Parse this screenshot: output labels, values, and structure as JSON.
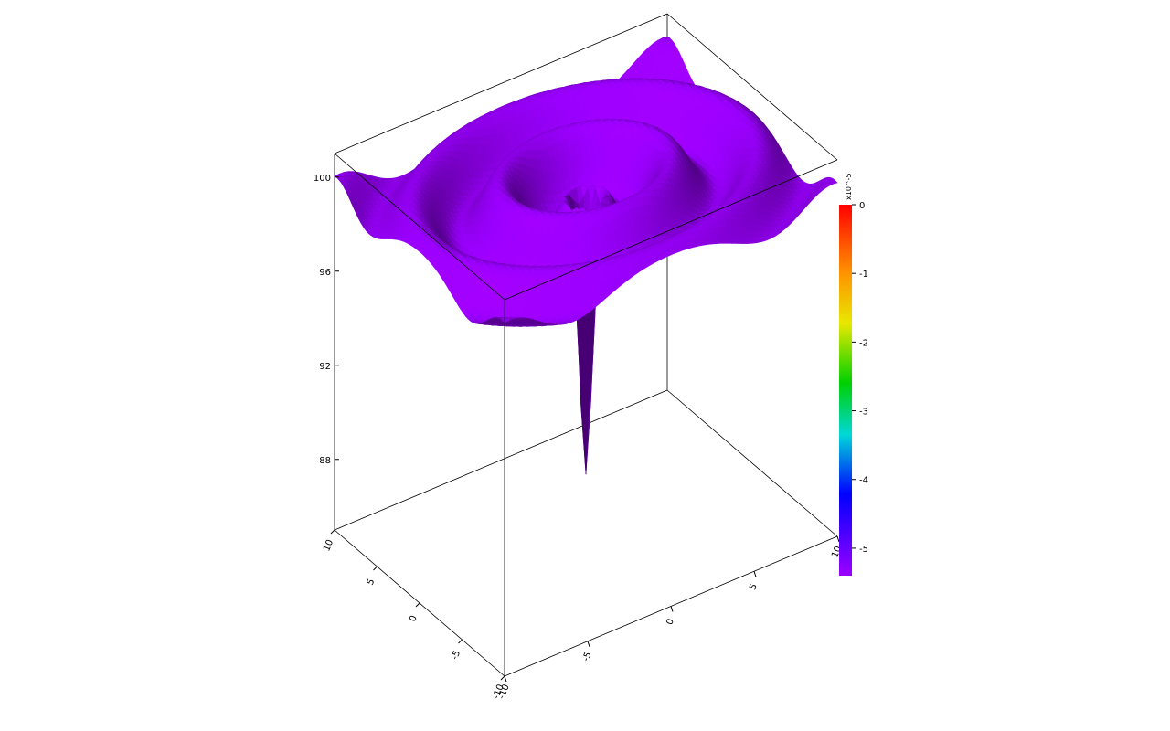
{
  "chart_data": {
    "type": "surface",
    "title": "",
    "xlabel": "",
    "ylabel": "",
    "zlabel": "",
    "x_range": [
      -10,
      10
    ],
    "y_range": [
      -10,
      10
    ],
    "z_range": [
      85,
      101
    ],
    "z_ticks": [
      {
        "value": 100,
        "label": "100"
      },
      {
        "value": 96,
        "label": "96"
      },
      {
        "value": 92,
        "label": "92"
      },
      {
        "value": 88,
        "label": "88"
      }
    ],
    "x_ticks": [
      {
        "value": -10,
        "label": "-10"
      },
      {
        "value": -5,
        "label": "-5"
      },
      {
        "value": 0,
        "label": "0"
      },
      {
        "value": 5,
        "label": "5"
      },
      {
        "value": 10,
        "label": "10"
      }
    ],
    "y_ticks": [
      {
        "value": -10,
        "label": "-10"
      },
      {
        "value": -5,
        "label": "-5"
      },
      {
        "value": 0,
        "label": "0"
      },
      {
        "value": 5,
        "label": "5"
      },
      {
        "value": 10,
        "label": "10"
      }
    ],
    "surface": {
      "description_shape": "radial ripple with sharp central spike downward",
      "base_level": 99.5,
      "ripple_amplitude": 1.5,
      "center_min": 86,
      "center_spike_radius": 0.4
    },
    "surface_color": "#9b00ff",
    "colorbar": {
      "title": "x10^-5",
      "range": [
        -5.4,
        0
      ],
      "ticks": [
        {
          "value": 0,
          "label": "0"
        },
        {
          "value": -1,
          "label": "-1"
        },
        {
          "value": -2,
          "label": "-2"
        },
        {
          "value": -3,
          "label": "-3"
        },
        {
          "value": -4,
          "label": "-4"
        },
        {
          "value": -5,
          "label": "-5"
        }
      ],
      "colors": [
        "#ff0000",
        "#ff8c00",
        "#ffff00",
        "#00ff00",
        "#00ffff",
        "#0000ff",
        "#9b00ff"
      ]
    },
    "grid": false,
    "legend": "colorbar-right"
  }
}
